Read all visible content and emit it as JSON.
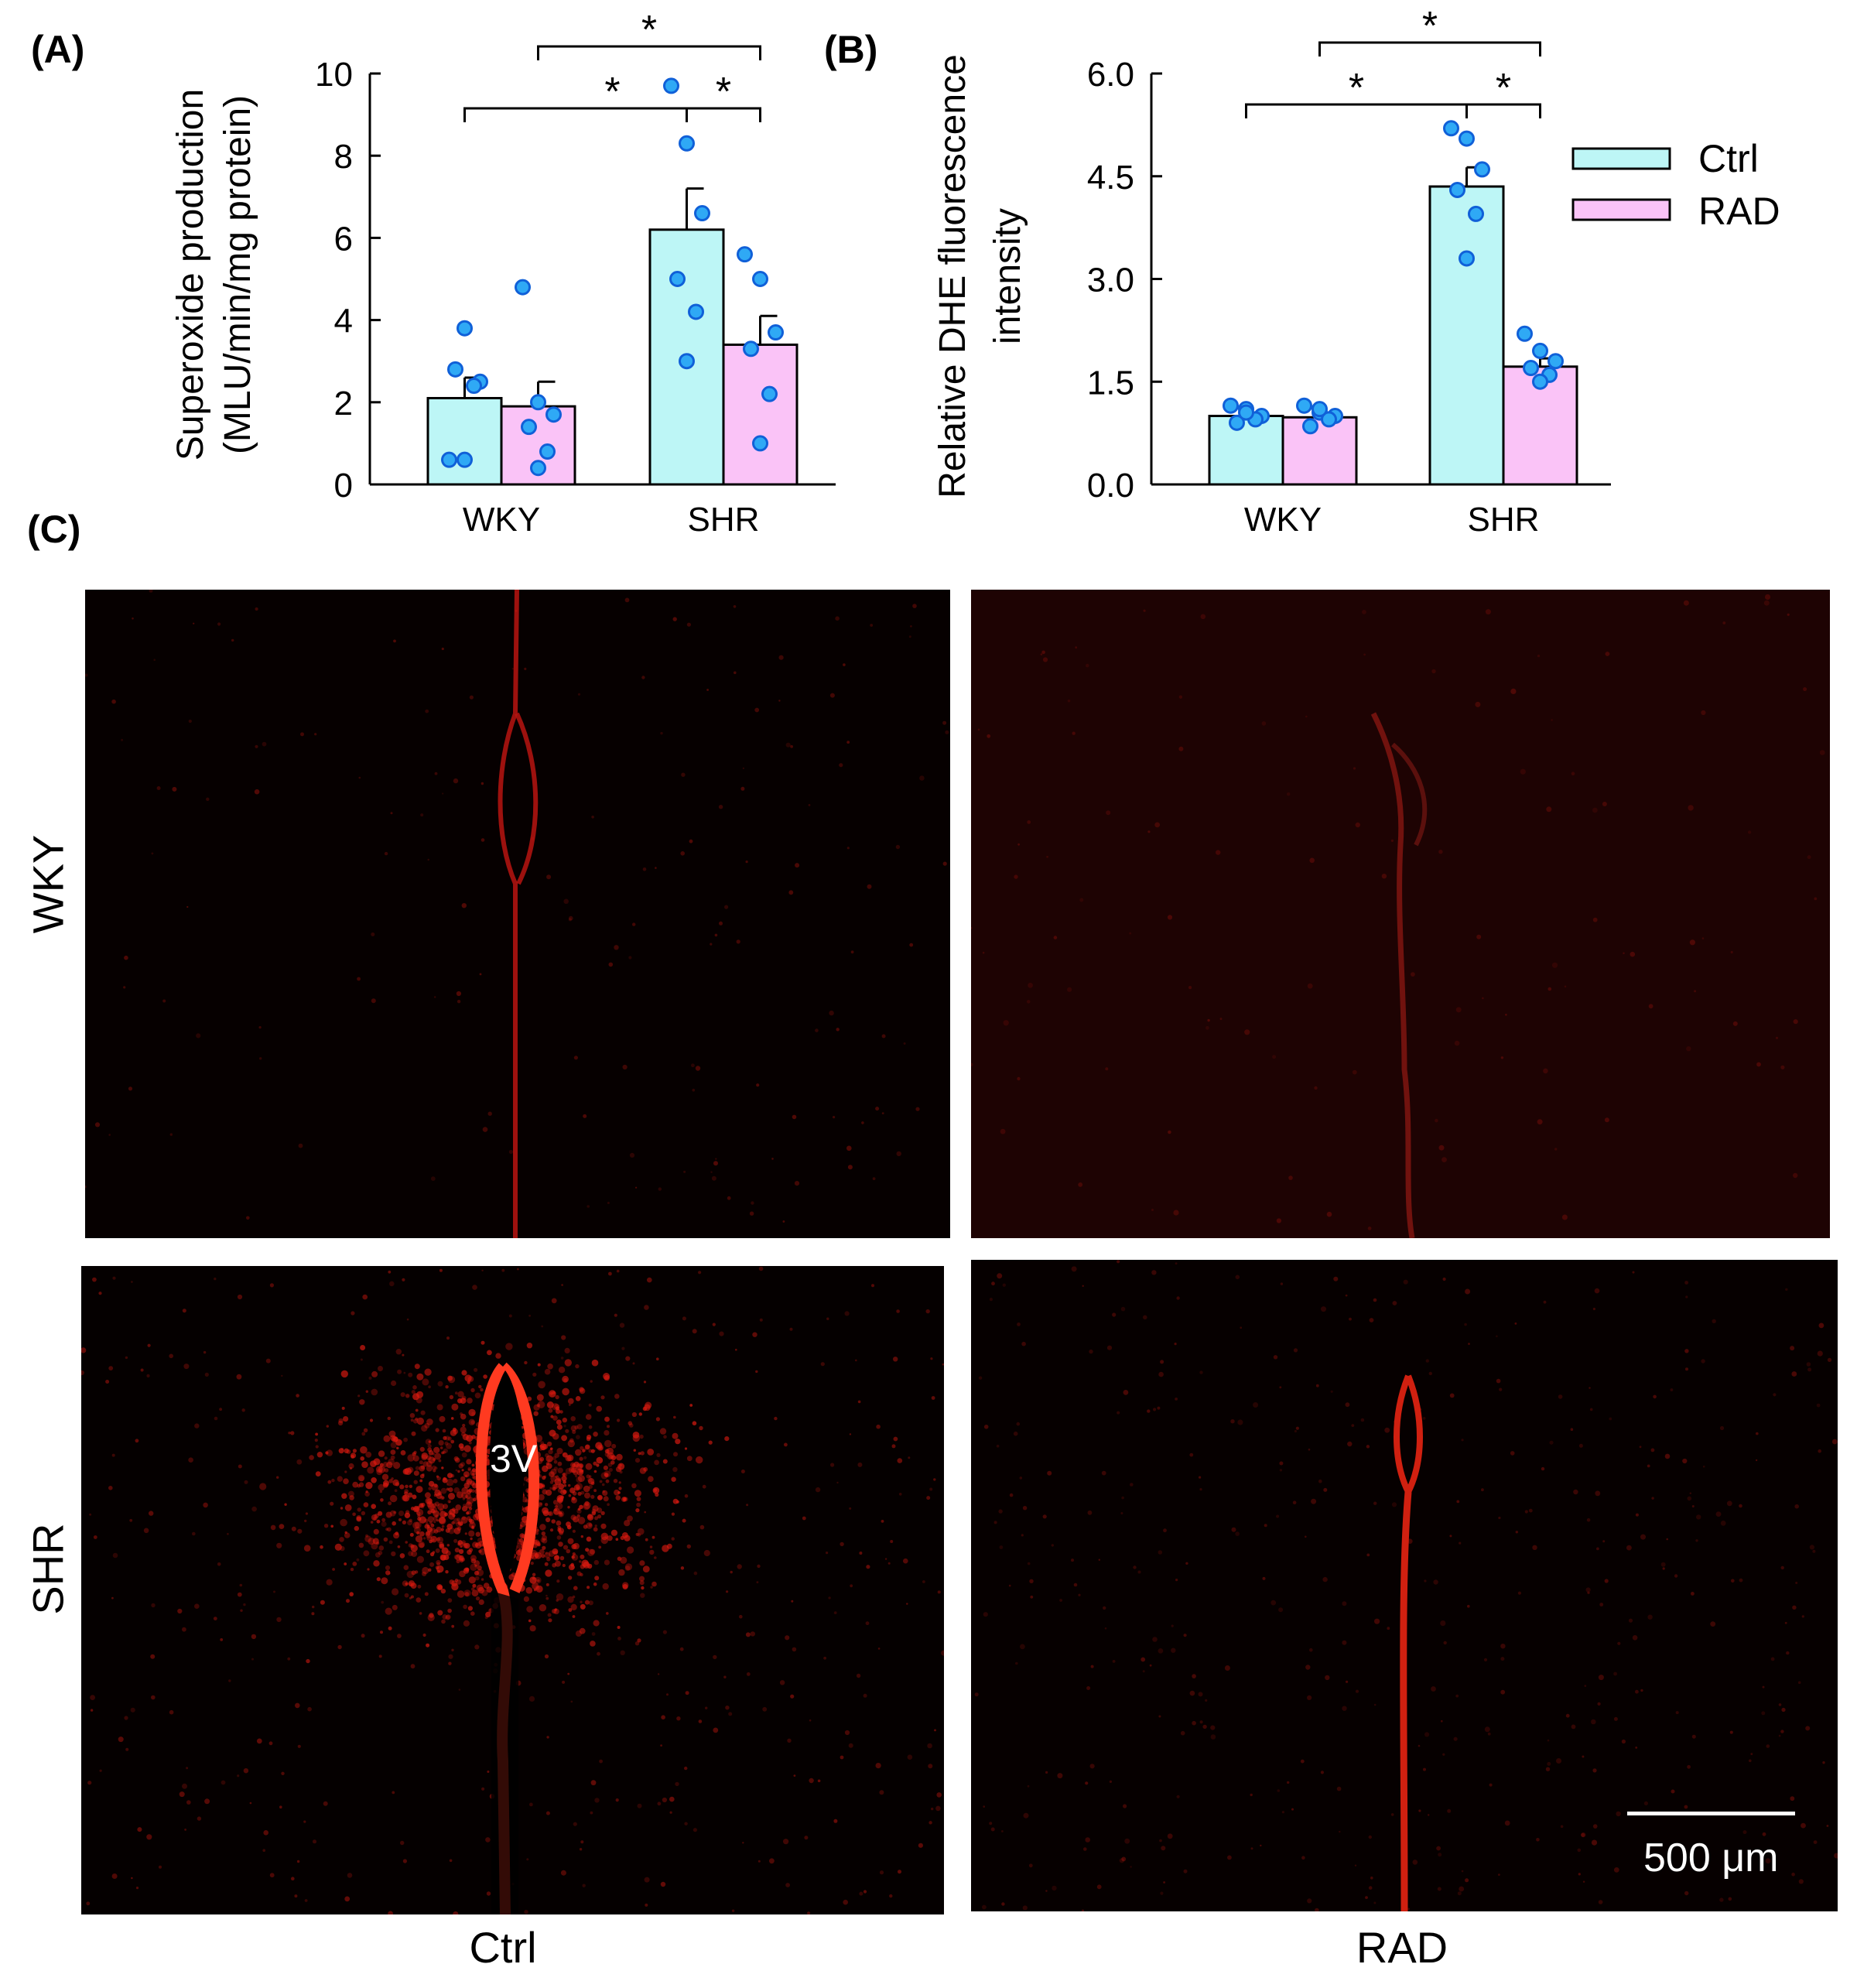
{
  "panel_labels": {
    "a": "(A)",
    "b": "(B)",
    "c": "(C)"
  },
  "chart_data": [
    {
      "type": "bar",
      "panel": "(A)",
      "ylabel_line1": "Superoxide production",
      "ylabel_line2": "(MLU/min/mg protein)",
      "xlabel": "",
      "categories": [
        "WKY",
        "SHR"
      ],
      "ylim": [
        0,
        10
      ],
      "yticks": [
        0,
        2,
        4,
        6,
        8,
        10
      ],
      "ytick_labels": [
        "0",
        "2",
        "4",
        "6",
        "8",
        "10"
      ],
      "series": [
        {
          "name": "Ctrl",
          "values": [
            2.1,
            6.2
          ],
          "sem": [
            0.5,
            1.0
          ],
          "points": [
            [
              0.6,
              0.6,
              2.5,
              2.8,
              2.4,
              3.8
            ],
            [
              9.7,
              8.3,
              6.6,
              5.0,
              4.2,
              3.0
            ]
          ]
        },
        {
          "name": "RAD",
          "values": [
            1.9,
            3.4
          ],
          "sem": [
            0.6,
            0.7
          ],
          "points": [
            [
              4.8,
              2.0,
              1.7,
              1.4,
              0.8,
              0.4
            ],
            [
              5.6,
              5.0,
              3.7,
              3.3,
              2.2,
              1.0
            ]
          ]
        }
      ],
      "significance": [
        {
          "from": "WKY Ctrl",
          "to": "SHR RAD",
          "label": "*"
        },
        {
          "from": "WKY RAD",
          "to": "SHR RAD",
          "label": "*"
        },
        {
          "from": "SHR Ctrl",
          "to": "SHR RAD",
          "label": "*"
        }
      ]
    },
    {
      "type": "bar",
      "panel": "(B)",
      "ylabel_line1": "Relative DHE fluorescence",
      "ylabel_line2": "intensity",
      "xlabel": "",
      "categories": [
        "WKY",
        "SHR"
      ],
      "ylim": [
        0,
        6
      ],
      "yticks": [
        0,
        1.5,
        3,
        4.5,
        6
      ],
      "ytick_labels": [
        "0.0",
        "1.5",
        "3.0",
        "4.5",
        "6.0"
      ],
      "legend_position": "top-right",
      "series": [
        {
          "name": "Ctrl",
          "values": [
            1.0,
            4.35
          ],
          "sem": [
            0.04,
            0.28
          ],
          "points": [
            [
              1.15,
              1.1,
              1.0,
              0.9,
              0.95,
              1.05
            ],
            [
              5.2,
              5.05,
              4.6,
              4.3,
              3.95,
              3.3
            ]
          ]
        },
        {
          "name": "RAD",
          "values": [
            0.98,
            1.72
          ],
          "sem": [
            0.05,
            0.12
          ],
          "points": [
            [
              1.15,
              1.05,
              1.0,
              0.85,
              0.95,
              1.1
            ],
            [
              2.2,
              1.95,
              1.8,
              1.7,
              1.6,
              1.5
            ]
          ]
        }
      ],
      "significance": [
        {
          "from": "WKY Ctrl",
          "to": "SHR Ctrl",
          "label": "*"
        },
        {
          "from": "WKY RAD",
          "to": "SHR RAD",
          "label": "*"
        },
        {
          "from": "SHR Ctrl",
          "to": "SHR RAD",
          "label": "*"
        }
      ]
    }
  ],
  "legend": {
    "items": [
      "Ctrl",
      "RAD"
    ]
  },
  "colors": {
    "ctrl": "#bdf6f6",
    "rad": "#fac3f7",
    "dot": "#2fa9f5",
    "dot_edge": "#1060d8",
    "fluor": "#e01a10"
  },
  "micrographs": {
    "row_labels": [
      "WKY",
      "SHR"
    ],
    "col_labels": [
      "Ctrl",
      "RAD"
    ],
    "ventricle_label": "3V",
    "scale_bar": "500 μm"
  }
}
